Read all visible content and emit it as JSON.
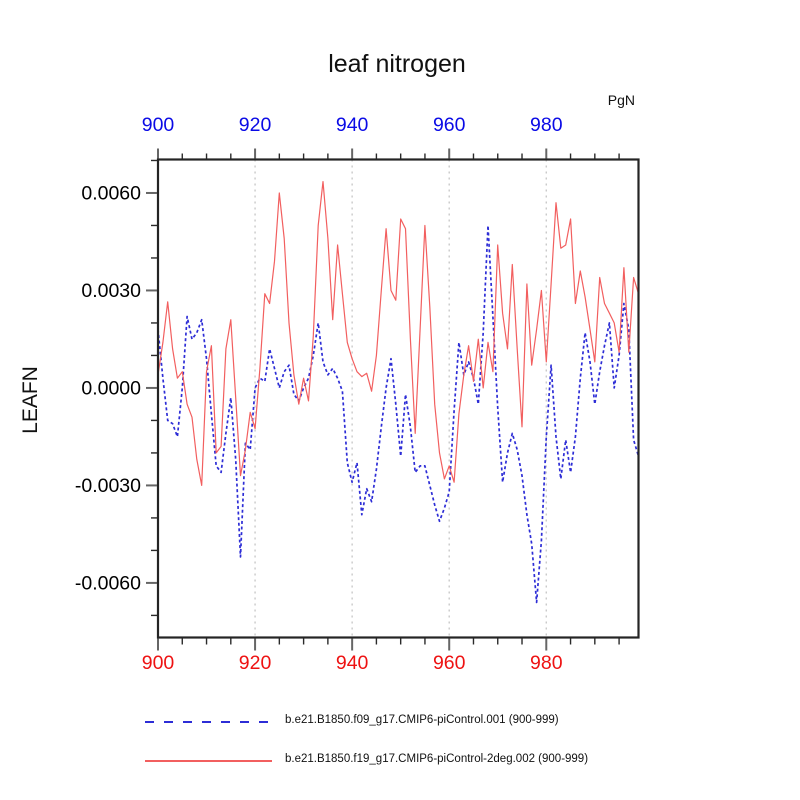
{
  "title": "leaf nitrogen",
  "units_label": "PgN",
  "y_axis_label": "LEAFN",
  "legend": {
    "items": [
      {
        "label": "b.e21.B1850.f09_g17.CMIP6-piControl.001 (900-999)",
        "color": "#2d2dd6",
        "style": "dashed"
      },
      {
        "label": "b.e21.B1850.f19_g17.CMIP6-piControl-2deg.002 (900-999)",
        "color": "#f25f5f",
        "style": "solid"
      }
    ]
  },
  "chart_data": {
    "type": "line",
    "title": "leaf nitrogen",
    "ylabel": "LEAFN",
    "top_right_label": "PgN",
    "xlim": [
      900,
      999
    ],
    "ylim": [
      -0.00768,
      0.00703
    ],
    "x_major_ticks": [
      900,
      920,
      940,
      960,
      980
    ],
    "x_minor_step": 5,
    "y_major_ticks": [
      -0.006,
      -0.003,
      0.0,
      0.003,
      0.006
    ],
    "y_tick_labels": [
      "-0.0060",
      "-0.0030",
      "0.0000",
      "0.0030",
      "0.0060"
    ],
    "y_minor_step": 0.001,
    "gridlines_x": [
      920,
      940,
      960,
      980
    ],
    "grid_on": true,
    "legend_position": "bottom",
    "colors": {
      "frame": "#242424",
      "tick_major": "#666666",
      "tick_minor": "#2a2a2a",
      "grid": "#c9c9c9",
      "top_labels": "#0a0ae6",
      "bottom_labels": "#ee1212",
      "left_labels": "#000000"
    },
    "x": [
      900,
      901,
      902,
      903,
      904,
      905,
      906,
      907,
      908,
      909,
      910,
      911,
      912,
      913,
      914,
      915,
      916,
      917,
      918,
      919,
      920,
      921,
      922,
      923,
      924,
      925,
      926,
      927,
      928,
      929,
      930,
      931,
      932,
      933,
      934,
      935,
      936,
      937,
      938,
      939,
      940,
      941,
      942,
      943,
      944,
      945,
      946,
      947,
      948,
      949,
      950,
      951,
      952,
      953,
      954,
      955,
      956,
      957,
      958,
      959,
      960,
      961,
      962,
      963,
      964,
      965,
      966,
      967,
      968,
      969,
      970,
      971,
      972,
      973,
      974,
      975,
      976,
      977,
      978,
      979,
      980,
      981,
      982,
      983,
      984,
      985,
      986,
      987,
      988,
      989,
      990,
      991,
      992,
      993,
      994,
      995,
      996,
      997,
      998,
      999
    ],
    "series": [
      {
        "name": "b.e21.B1850.f09_g17.CMIP6-piControl.001 (900-999)",
        "color": "#2d2dd6",
        "style": "dashed",
        "values": [
          0.0018,
          0.0003,
          -0.001,
          -0.0011,
          -0.0015,
          0.0,
          0.0022,
          0.0015,
          0.0017,
          0.0021,
          0.0009,
          -0.0008,
          -0.0024,
          -0.0026,
          -0.0014,
          -0.0003,
          -0.0022,
          -0.0052,
          -0.0017,
          -0.0019,
          0.0,
          0.0003,
          0.0002,
          0.0012,
          0.0006,
          0.0,
          0.0005,
          0.0007,
          -0.0002,
          -0.0004,
          0.0,
          0.0003,
          0.001,
          0.002,
          0.0008,
          0.0004,
          0.0006,
          0.0003,
          -0.0001,
          -0.0023,
          -0.0029,
          -0.0023,
          -0.0039,
          -0.0031,
          -0.0035,
          -0.0025,
          -0.0012,
          0.0,
          0.0009,
          -0.0005,
          -0.0021,
          -0.0002,
          -0.0012,
          -0.0026,
          -0.0024,
          -0.0024,
          -0.003,
          -0.0036,
          -0.0041,
          -0.0037,
          -0.0032,
          -0.0007,
          0.0014,
          0.0004,
          0.0008,
          0.0003,
          -0.0005,
          0.0017,
          0.005,
          0.0022,
          -0.0006,
          -0.0029,
          -0.002,
          -0.0014,
          -0.0019,
          -0.0027,
          -0.0039,
          -0.0048,
          -0.0066,
          -0.0047,
          -0.0015,
          0.0007,
          -0.0015,
          -0.0028,
          -0.0016,
          -0.0026,
          -0.0015,
          0.0003,
          0.0017,
          0.0008,
          -0.0005,
          0.0005,
          0.0013,
          0.002,
          0.0,
          0.001,
          0.0026,
          0.0018,
          -0.0016,
          -0.0021
        ]
      },
      {
        "name": "b.e21.B1850.f19_g17.CMIP6-piControl-2deg.002 (900-999)",
        "color": "#f25f5f",
        "style": "solid",
        "values": [
          0.0004,
          0.0014,
          0.00265,
          0.0012,
          0.0003,
          0.0005,
          -0.0005,
          -0.0009,
          -0.0022,
          -0.003,
          0.0005,
          0.0013,
          -0.002,
          -0.0018,
          0.0012,
          0.0021,
          -0.0003,
          -0.0027,
          -0.0019,
          -0.00075,
          -0.00125,
          0.0006,
          0.0029,
          0.0026,
          0.0039,
          0.006,
          0.0046,
          0.002,
          0.0004,
          -0.0005,
          0.0003,
          -0.0004,
          0.0016,
          0.005,
          0.00635,
          0.0046,
          0.0021,
          0.0044,
          0.0029,
          0.0014,
          0.0009,
          0.0005,
          0.00035,
          0.00045,
          -0.0001,
          0.001,
          0.003,
          0.0049,
          0.003,
          0.0027,
          0.0052,
          0.0049,
          0.0015,
          -0.0014,
          0.0018,
          0.005,
          0.0025,
          -0.0005,
          -0.002,
          -0.0028,
          -0.0024,
          -0.0029,
          -0.0008,
          0.0004,
          0.0013,
          0.0002,
          0.0015,
          0.0,
          0.0014,
          0.0005,
          0.0044,
          0.0023,
          0.0012,
          0.0038,
          0.0012,
          -0.0012,
          0.0032,
          0.0007,
          0.0018,
          0.003,
          0.0008,
          0.0032,
          0.0057,
          0.0043,
          0.0044,
          0.0052,
          0.0026,
          0.0036,
          0.0028,
          0.0018,
          0.0008,
          0.0034,
          0.0026,
          0.0023,
          0.002,
          0.0011,
          0.0037,
          0.0011,
          0.0034,
          0.0029
        ]
      }
    ]
  }
}
